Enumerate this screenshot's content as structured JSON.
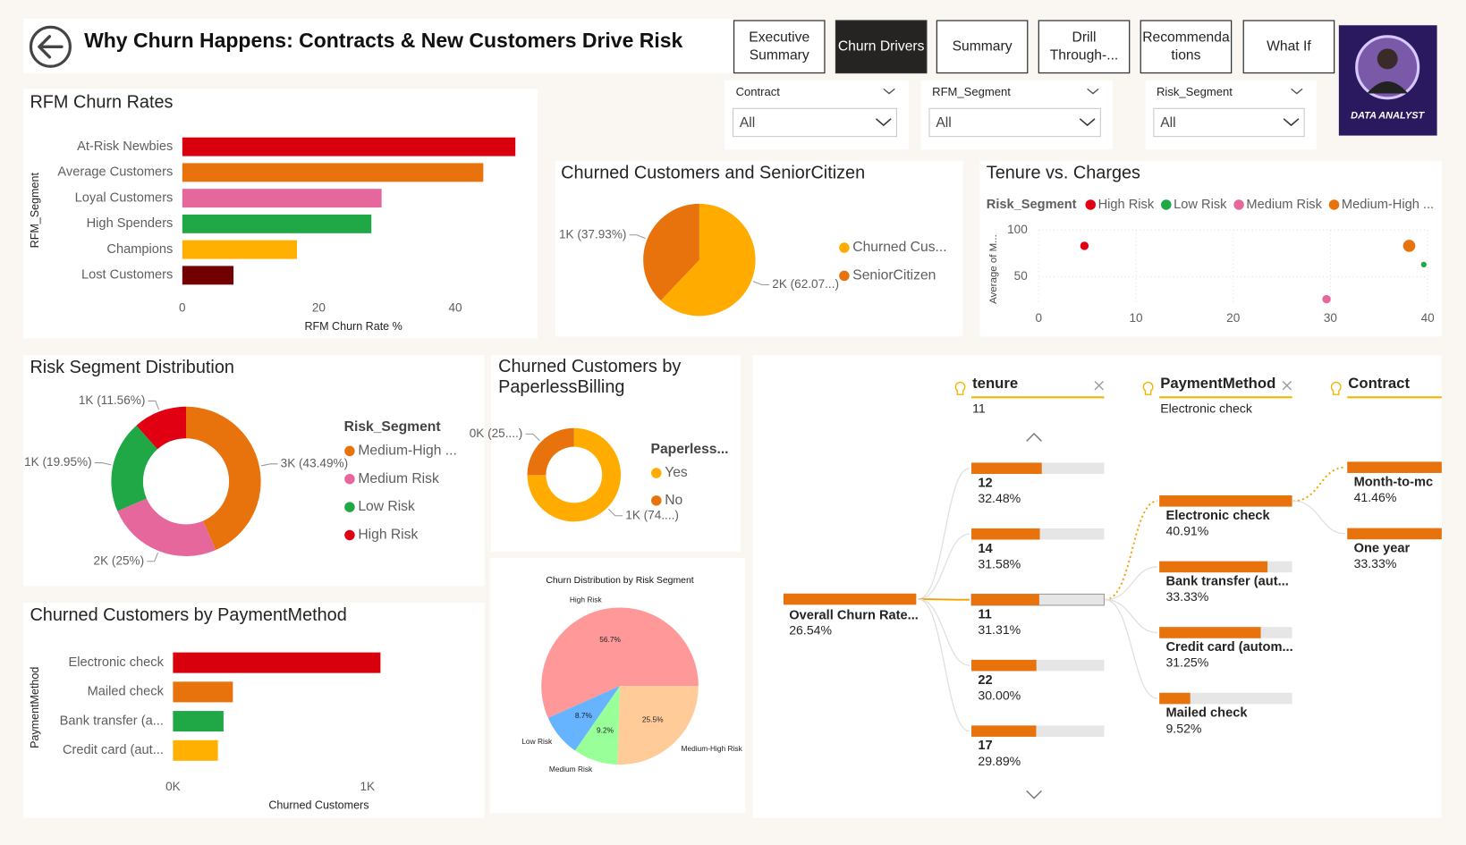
{
  "header": {
    "title": "Why Churn Happens: Contracts & New Customers Drive Risk",
    "badge": "DATA ANALYST"
  },
  "nav": {
    "active": 1,
    "buttons": [
      [
        "Executive",
        "Summary"
      ],
      [
        "Churn Drivers"
      ],
      [
        "Summary"
      ],
      [
        "Drill",
        "Through-..."
      ],
      [
        "Recommenda",
        "tions"
      ],
      [
        "What If"
      ]
    ]
  },
  "filters": [
    {
      "label": "Contract",
      "value": "All"
    },
    {
      "label": "RFM_Segment",
      "value": "All"
    },
    {
      "label": "Risk_Segment",
      "value": "All"
    }
  ],
  "chart_data": [
    {
      "type": "bar",
      "orientation": "horizontal",
      "title": "RFM Churn Rates",
      "y_label": "RFM_Segment",
      "x_label": "RFM Churn Rate %",
      "categories": [
        "At-Risk Newbies",
        "Average Customers",
        "Loyal Customers",
        "High Spenders",
        "Champions",
        "Lost Customers"
      ],
      "values": [
        48.8,
        44.1,
        29.2,
        27.7,
        16.8,
        7.5
      ],
      "colors": [
        "#d9000d",
        "#e8720c",
        "#e5679b",
        "#1fa845",
        "#ffb000",
        "#730000"
      ],
      "xlim": [
        0,
        50
      ],
      "xticks": [
        0,
        20,
        40
      ]
    },
    {
      "type": "pie",
      "title": "Churned Customers and SeniorCitizen",
      "legend": true,
      "start_angle": 0,
      "direction": "clockwise",
      "categories": [
        "Churned Cus...",
        "SeniorCitizen"
      ],
      "values": [
        62.07,
        37.93
      ],
      "value_labels": [
        "2K (62.07...)",
        "1K (37.93%)"
      ],
      "colors": [
        "#ffab00",
        "#e8720c"
      ]
    },
    {
      "type": "scatter",
      "title": "Tenure vs. Charges",
      "legend_title": "Risk_Segment",
      "y_label": "Average of M...",
      "series": [
        {
          "name": "High Risk",
          "color": "#e00012",
          "x": [
            4.7
          ],
          "values": [
            83
          ]
        },
        {
          "name": "Low Risk",
          "color": "#1fa845",
          "x": [
            39.6
          ],
          "values": [
            63
          ]
        },
        {
          "name": "Medium Risk",
          "color": "#e5679b",
          "x": [
            29.6
          ],
          "values": [
            26
          ]
        },
        {
          "name": "Medium-High ...",
          "color": "#e8720c",
          "x": [
            38.1
          ],
          "values": [
            83
          ]
        }
      ],
      "xlim": [
        0,
        40
      ],
      "xticks": [
        0,
        10,
        20,
        30,
        40
      ],
      "ylim": [
        20,
        100
      ],
      "yticks": [
        50,
        100
      ],
      "grid": true
    },
    {
      "type": "donut",
      "title": "Risk Segment Distribution",
      "legend_title": "Risk_Segment",
      "categories": [
        "Medium-High ...",
        "Medium Risk",
        "Low Risk",
        "High Risk"
      ],
      "values": [
        43.49,
        25,
        19.95,
        11.56
      ],
      "value_labels": [
        "3K (43.49%)",
        "2K (25%)",
        "1K (19.95%)",
        "1K (11.56%)"
      ],
      "colors": [
        "#e8720c",
        "#e5679b",
        "#1fa845",
        "#e00012"
      ]
    },
    {
      "type": "donut",
      "title": "Churned Customers by PaperlessBilling",
      "legend_title": "Paperless...",
      "categories": [
        "Yes",
        "No"
      ],
      "values": [
        74.9,
        25.1
      ],
      "value_labels": [
        "1K (74....)",
        "0K (25....)"
      ],
      "colors": [
        "#ffab00",
        "#e8720c"
      ]
    },
    {
      "type": "pie",
      "title": "Churn Distribution by Risk Segment",
      "legend": false,
      "start_angle": 90,
      "direction": "counterclockwise",
      "categories": [
        "High Risk",
        "Low Risk",
        "Medium Risk",
        "Medium-High Risk"
      ],
      "values": [
        56.7,
        8.7,
        9.2,
        25.5
      ],
      "value_labels": [
        "56.7%",
        "8.7%",
        "9.2%",
        "25.5%"
      ],
      "colors": [
        "#ff9999",
        "#66b3ff",
        "#99ff99",
        "#ffcc99"
      ]
    },
    {
      "type": "bar",
      "orientation": "horizontal",
      "title": "Churned Customers by PaymentMethod",
      "y_label": "PaymentMethod",
      "x_label": "Churned Customers",
      "categories": [
        "Electronic check",
        "Mailed check",
        "Bank transfer (a...",
        "Credit card (aut..."
      ],
      "values": [
        1067,
        308,
        260,
        231
      ],
      "colors": [
        "#d9000d",
        "#e8720c",
        "#1fa845",
        "#ffb000"
      ],
      "xlim": [
        0,
        1100
      ],
      "xticks": [
        {
          "value": 0,
          "label": "0K"
        },
        {
          "value": 1000,
          "label": "1K"
        }
      ]
    },
    {
      "type": "decomposition_tree",
      "root": {
        "label": "Overall Churn Rate...",
        "value": 26.54,
        "value_label": "26.54%"
      },
      "levels": [
        {
          "field": "tenure",
          "selected": "11",
          "expanded": 2,
          "categories": [
            "12",
            "14",
            "11",
            "22",
            "17"
          ],
          "values": [
            32.48,
            31.58,
            31.31,
            30.0,
            29.89
          ],
          "value_labels": [
            "32.48%",
            "31.58%",
            "31.31%",
            "30.00%",
            "29.89%"
          ]
        },
        {
          "field": "PaymentMethod",
          "selected": "Electronic check",
          "expanded": 0,
          "categories": [
            "Electronic check",
            "Bank transfer (aut...",
            "Credit card (autom...",
            "Mailed check"
          ],
          "values": [
            40.91,
            33.33,
            31.25,
            9.52
          ],
          "value_labels": [
            "40.91%",
            "33.33%",
            "31.25%",
            "9.52%"
          ]
        },
        {
          "field": "Contract",
          "categories": [
            "Month-to-mc",
            "One year"
          ],
          "values": [
            41.46,
            33.33
          ],
          "value_labels": [
            "41.46%",
            "33.33%"
          ]
        }
      ]
    }
  ]
}
